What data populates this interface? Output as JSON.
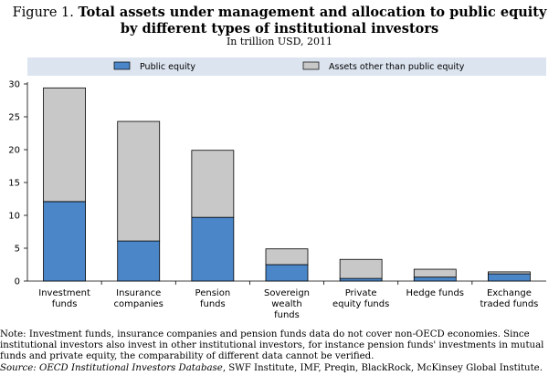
{
  "title": {
    "figure_label": "Figure 1.",
    "line1": "Total assets under management and allocation to public equity",
    "line2": "by different types of institutional investors"
  },
  "subtitle": "In trillion USD, 2011",
  "colors": {
    "public_equity": "#4a86c8",
    "other_assets": "#c8c8c8",
    "legend_band": "#dbe4ef",
    "bar_stroke": "#000000"
  },
  "chart_data": {
    "type": "bar",
    "stacked": true,
    "categories": [
      [
        "Investment",
        "funds"
      ],
      [
        "Insurance",
        "companies"
      ],
      [
        "Pension",
        "funds"
      ],
      [
        "Sovereign",
        "wealth",
        "funds"
      ],
      [
        "Private",
        "equity funds"
      ],
      [
        "Hedge funds"
      ],
      [
        "Exchange",
        "traded funds"
      ]
    ],
    "series": [
      {
        "name": "Public equity",
        "values": [
          12.1,
          6.1,
          9.7,
          2.5,
          0.4,
          0.6,
          1.1
        ]
      },
      {
        "name": "Assets other than public equity",
        "values": [
          17.3,
          18.2,
          10.2,
          2.4,
          2.9,
          1.2,
          0.3
        ]
      }
    ],
    "ylim": [
      0,
      30
    ],
    "yticks": [
      0,
      5,
      10,
      15,
      20,
      25,
      30
    ],
    "legend_placement": "top",
    "grid": false
  },
  "note": {
    "note_label": "Note:",
    "note_text": "Investment funds, insurance companies and pension funds data do not cover non-OECD economies. Since institutional investors also invest in other institutional investors, for instance pension funds' investments in mutual funds and private equity, the comparability of different data cannot be verified.",
    "source_label": "Source:",
    "source_italic": "OECD Institutional Investors Database",
    "source_rest": ", SWF Institute, IMF, Preqin, BlackRock, McKinsey Global Institute."
  }
}
